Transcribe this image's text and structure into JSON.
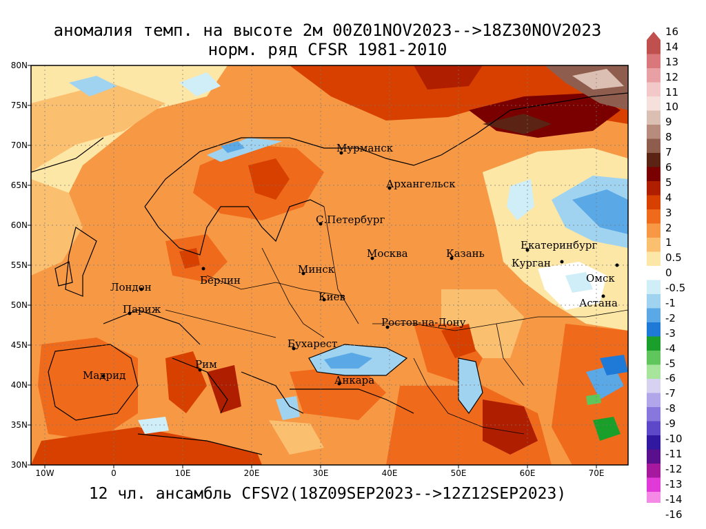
{
  "title": {
    "line1": "аномалия темп. на высоте 2м 00Z01NOV2023-->18Z30NOV2023",
    "line2": "норм. ряд CFSR 1981-2010"
  },
  "footer": "12 чл. ансамбль CFSV2(18Z09SEP2023-->12Z12SEP2023)",
  "axes": {
    "lat_labels": [
      "80N",
      "75N",
      "70N",
      "65N",
      "60N",
      "55N",
      "50N",
      "45N",
      "40N",
      "35N",
      "30N"
    ],
    "lon_labels": [
      "10W",
      "0",
      "10E",
      "20E",
      "30E",
      "40E",
      "50E",
      "60E",
      "70E"
    ]
  },
  "cities": [
    {
      "name": "Мурманск"
    },
    {
      "name": "Архангельск"
    },
    {
      "name": "С.Петербург"
    },
    {
      "name": "Москва"
    },
    {
      "name": "Казань"
    },
    {
      "name": "Екатеринбург"
    },
    {
      "name": "Курган"
    },
    {
      "name": "Омск"
    },
    {
      "name": "Астана"
    },
    {
      "name": "Минск"
    },
    {
      "name": "Берлин"
    },
    {
      "name": "Лондон"
    },
    {
      "name": "Париж"
    },
    {
      "name": "Киев"
    },
    {
      "name": "Ростов-на-Дону"
    },
    {
      "name": "Бухарест"
    },
    {
      "name": "Рим"
    },
    {
      "name": "Мадрид"
    },
    {
      "name": "Анкара"
    }
  ],
  "colorbar": {
    "labels": [
      "16",
      "14",
      "13",
      "12",
      "11",
      "10",
      "9",
      "8",
      "7",
      "6",
      "5",
      "4",
      "3",
      "2",
      "1",
      "0.5",
      "0",
      "-0.5",
      "-1",
      "-2",
      "-3",
      "-4",
      "-5",
      "-6",
      "-7",
      "-8",
      "-9",
      "-10",
      "-11",
      "-12",
      "-13",
      "-14",
      "-16"
    ],
    "colors": [
      "#c0504d",
      "#d9777a",
      "#e8a0a5",
      "#f2c8c8",
      "#f6e0dc",
      "#dcbfb3",
      "#b88c7c",
      "#8f5d4e",
      "#5a2314",
      "#7a0000",
      "#b01e00",
      "#d84000",
      "#f06a1c",
      "#f79845",
      "#fbbf70",
      "#fde7a6",
      "#ffffff",
      "#d0eef8",
      "#9fd3f0",
      "#5aa8e6",
      "#1e7ad6",
      "#1aa02a",
      "#5fc65c",
      "#a6e59b",
      "#d7d2f2",
      "#b2a6ea",
      "#8877dd",
      "#5c48c8",
      "#3018a0",
      "#5a0f8c",
      "#a6199e",
      "#e23ad8",
      "#f58ae6"
    ]
  }
}
